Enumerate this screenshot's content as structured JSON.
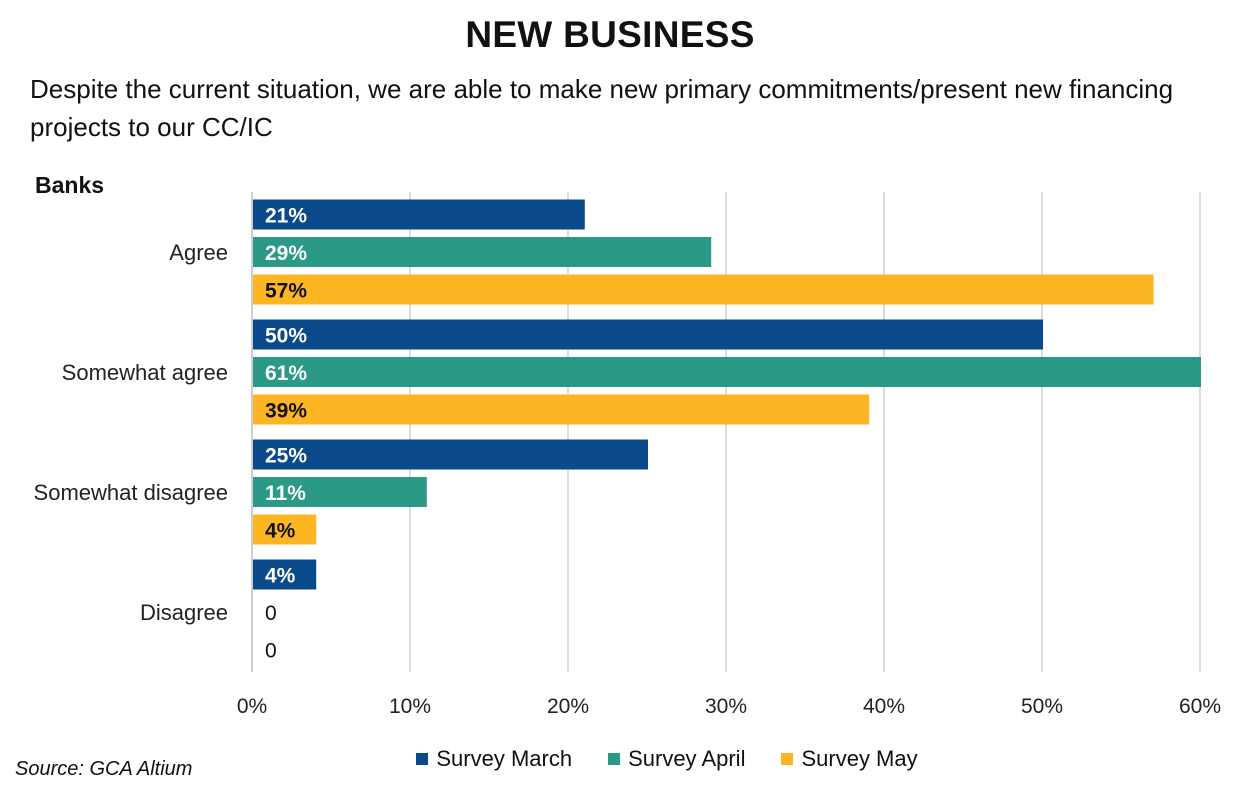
{
  "title": "NEW BUSINESS",
  "subtitle": "Despite the current situation, we are able to make new primary commitments/present new financing projects to our CC/IC",
  "panel_label": "Banks",
  "source": "Source: GCA Altium",
  "colors": {
    "march": "#0b4a8a",
    "april": "#2a9a86",
    "may": "#fdb622",
    "grid": "#d0d0d0"
  },
  "chart_data": {
    "type": "bar",
    "orientation": "horizontal",
    "categories": [
      "Agree",
      "Somewhat agree",
      "Somewhat disagree",
      "Disagree"
    ],
    "series": [
      {
        "name": "Survey March",
        "values": [
          21,
          50,
          25,
          4
        ],
        "labels": [
          "21%",
          "50%",
          "25%",
          "4%"
        ]
      },
      {
        "name": "Survey April",
        "values": [
          29,
          61,
          11,
          0
        ],
        "labels": [
          "29%",
          "61%",
          "11%",
          "0"
        ]
      },
      {
        "name": "Survey May",
        "values": [
          57,
          39,
          4,
          0
        ],
        "labels": [
          "57%",
          "39%",
          "4%",
          "0"
        ]
      }
    ],
    "xlim": [
      0,
      60
    ],
    "ticks": [
      "0%",
      "10%",
      "20%",
      "30%",
      "40%",
      "50%",
      "60%"
    ],
    "grid": true,
    "legend": "bottom"
  }
}
